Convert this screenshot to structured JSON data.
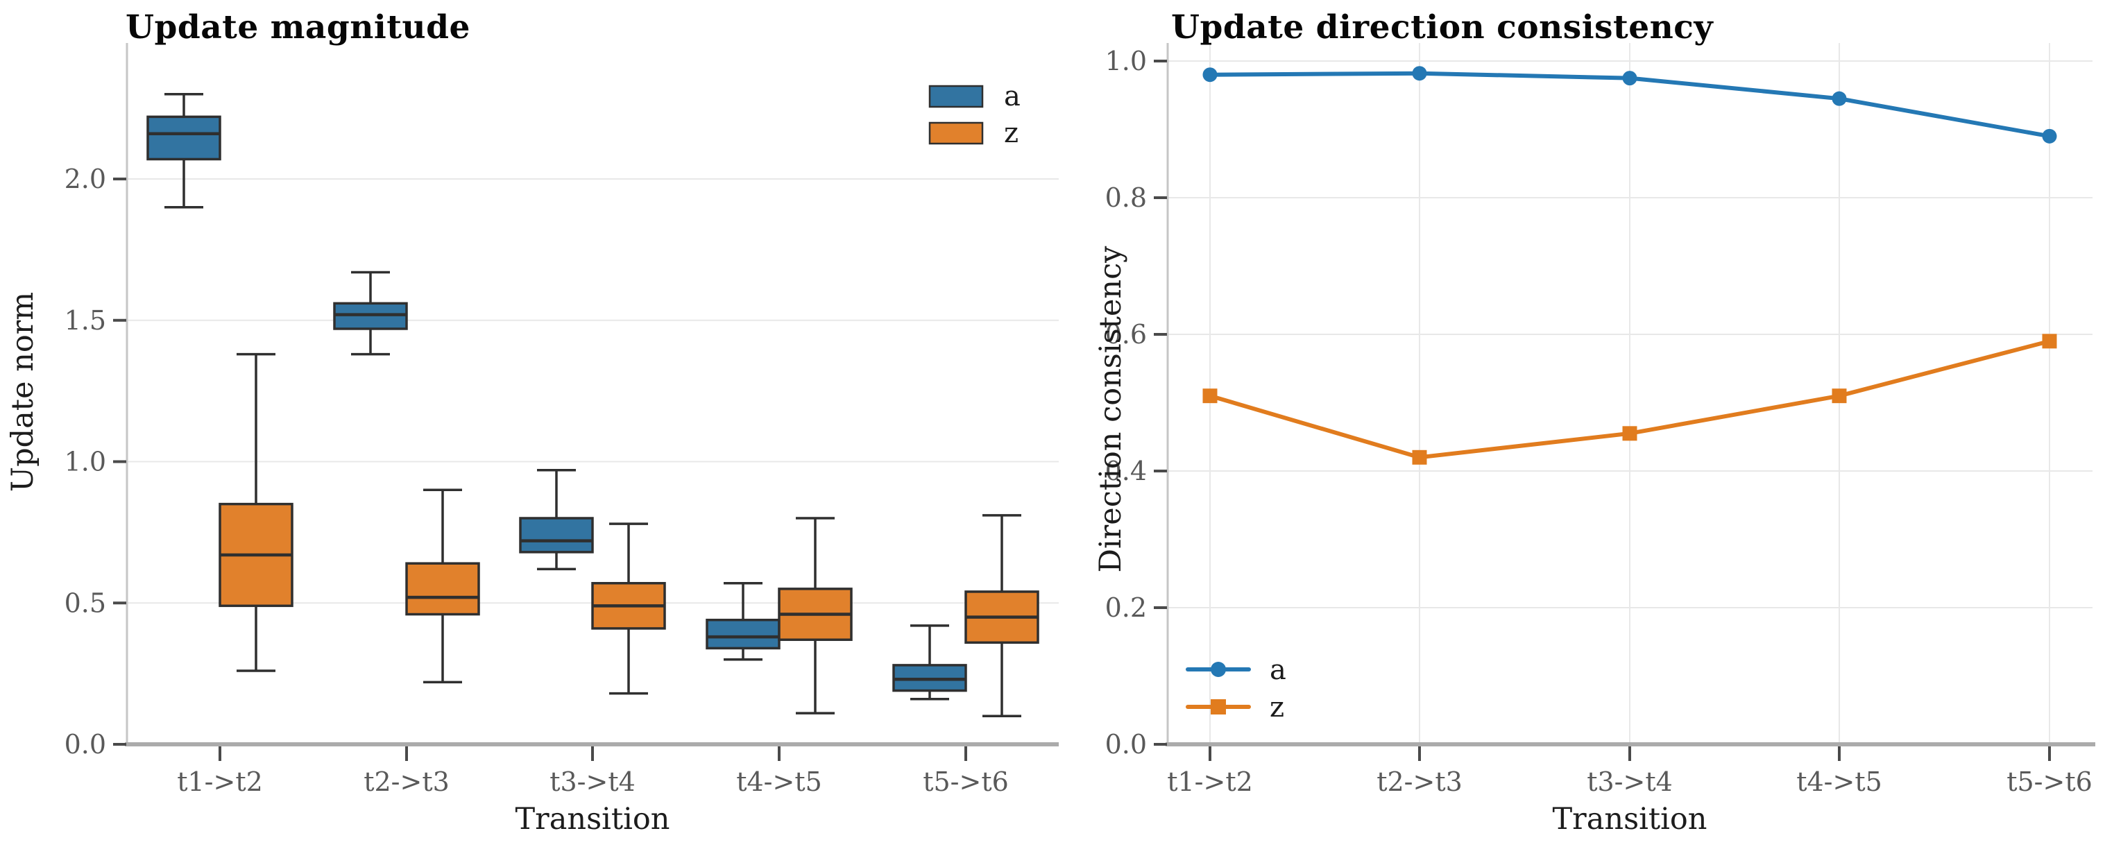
{
  "styles": {
    "background": "#ffffff",
    "grid_color": "#e8e8e8",
    "spine_color": "#c6c6c6",
    "baseline_color": "#ababab",
    "tick_color": "#4a4a4a",
    "tick_label_color": "#595959",
    "label_color": "#1c1c1c",
    "title_color": "#070707",
    "box_edge_color": "#2f2f2f"
  },
  "chart_data": [
    {
      "type": "grouped_boxplot",
      "title": "Update magnitude",
      "xlabel": "Transition",
      "ylabel": "Update norm",
      "categories": [
        "t1->t2",
        "t2->t3",
        "t3->t4",
        "t4->t5",
        "t5->t6"
      ],
      "ylim": [
        0.0,
        2.48
      ],
      "yticks": [
        {
          "value": 0.0,
          "label": "0.0"
        },
        {
          "value": 0.5,
          "label": "0.5"
        },
        {
          "value": 1.0,
          "label": "1.0"
        },
        {
          "value": 1.5,
          "label": "1.5"
        },
        {
          "value": 2.0,
          "label": "2.0"
        }
      ],
      "grid": "horizontal",
      "legend": {
        "position": "upper-right",
        "entries": [
          {
            "label": "a",
            "color": "#3274a1"
          },
          {
            "label": "z",
            "color": "#e1812c"
          }
        ]
      },
      "series": [
        {
          "name": "a",
          "color": "#3274a1",
          "boxes": [
            {
              "whislo": 1.9,
              "q1": 2.07,
              "med": 2.16,
              "q3": 2.22,
              "whishi": 2.3
            },
            {
              "whislo": 1.38,
              "q1": 1.47,
              "med": 1.52,
              "q3": 1.56,
              "whishi": 1.67
            },
            {
              "whislo": 0.62,
              "q1": 0.68,
              "med": 0.72,
              "q3": 0.8,
              "whishi": 0.97
            },
            {
              "whislo": 0.3,
              "q1": 0.34,
              "med": 0.38,
              "q3": 0.44,
              "whishi": 0.57
            },
            {
              "whislo": 0.16,
              "q1": 0.19,
              "med": 0.23,
              "q3": 0.28,
              "whishi": 0.42
            }
          ]
        },
        {
          "name": "z",
          "color": "#e1812c",
          "boxes": [
            {
              "whislo": 0.26,
              "q1": 0.49,
              "med": 0.67,
              "q3": 0.85,
              "whishi": 1.38
            },
            {
              "whislo": 0.22,
              "q1": 0.46,
              "med": 0.52,
              "q3": 0.64,
              "whishi": 0.9
            },
            {
              "whislo": 0.18,
              "q1": 0.41,
              "med": 0.49,
              "q3": 0.57,
              "whishi": 0.78
            },
            {
              "whislo": 0.11,
              "q1": 0.37,
              "med": 0.46,
              "q3": 0.55,
              "whishi": 0.8
            },
            {
              "whislo": 0.1,
              "q1": 0.36,
              "med": 0.45,
              "q3": 0.54,
              "whishi": 0.81
            }
          ]
        }
      ]
    },
    {
      "type": "line",
      "title": "Update direction consistency",
      "xlabel": "Transition",
      "ylabel": "Direction consistency",
      "categories": [
        "t1->t2",
        "t2->t3",
        "t3->t4",
        "t4->t5",
        "t5->t6"
      ],
      "ylim": [
        0.0,
        1.03
      ],
      "yticks": [
        {
          "value": 0.0,
          "label": "0.0"
        },
        {
          "value": 0.2,
          "label": "0.2"
        },
        {
          "value": 0.4,
          "label": "0.4"
        },
        {
          "value": 0.6,
          "label": "0.6"
        },
        {
          "value": 0.8,
          "label": "0.8"
        },
        {
          "value": 1.0,
          "label": "1.0"
        }
      ],
      "grid": "both",
      "legend": {
        "position": "lower-left",
        "entries": [
          {
            "label": "a",
            "color": "#2478b4",
            "marker": "circle"
          },
          {
            "label": "z",
            "color": "#e17c1e",
            "marker": "square"
          }
        ]
      },
      "series": [
        {
          "name": "a",
          "color": "#2478b4",
          "marker": "circle",
          "values": [
            0.98,
            0.982,
            0.975,
            0.945,
            0.89
          ]
        },
        {
          "name": "z",
          "color": "#e17c1e",
          "marker": "square",
          "values": [
            0.51,
            0.42,
            0.455,
            0.51,
            0.59
          ]
        }
      ]
    }
  ]
}
